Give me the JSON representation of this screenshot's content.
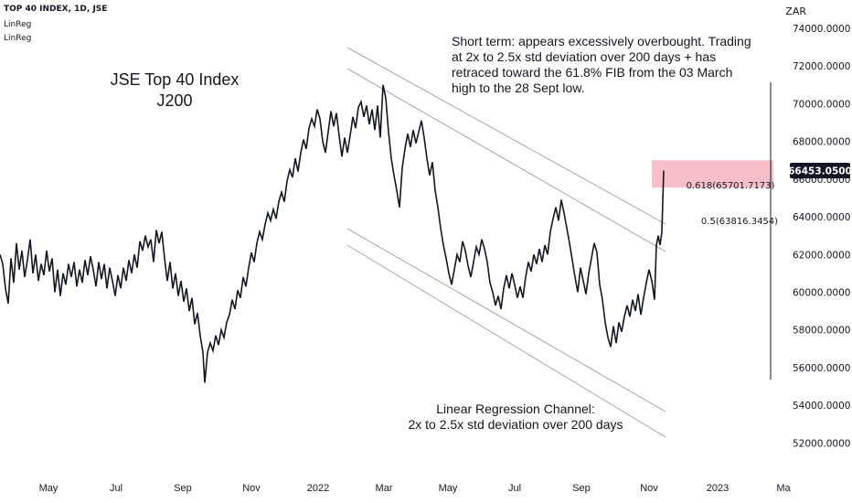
{
  "header": {
    "symbol_line": "TOP 40 INDEX, 1D, JSE",
    "indicator_1": "LinReg",
    "indicator_2": "LinReg"
  },
  "currency": "ZAR",
  "colors": {
    "price_line": "#131722",
    "channel_line": "#9e9e9e",
    "fib_box": "#f6aab7",
    "price_tag_bg": "#131722",
    "price_tag_text": "#ffffff"
  },
  "chart_data": {
    "type": "line",
    "title": "JSE Top 40 Index",
    "subtitle": "J200",
    "annotation_top": "Short term: appears excessively overbought. Trading at 2x to 2.5x std deviation over 200 days + has retraced toward the 61.8% FIB from the 03 March high to the 28 Sept low.",
    "annotation_top_lines": [
      "Short term: appears excessively overbought. Trading",
      "at 2x to 2.5x std deviation over 200 days + has",
      "retraced toward the 61.8% FIB from the 03 March",
      "high to the 28 Sept low."
    ],
    "annotation_bottom_lines": [
      "Linear Regression Channel:",
      "2x to 2.5x std deviation over 200 days"
    ],
    "x_tick_labels": [
      "May",
      "Jul",
      "Sep",
      "Nov",
      "2022",
      "Mar",
      "May",
      "Jul",
      "Sep",
      "Nov",
      "2023",
      "Ma"
    ],
    "y_tick_labels": [
      "74000.0000",
      "72000.0000",
      "70000.0000",
      "68000.0000",
      "66000.0000",
      "64000.0000",
      "62000.0000",
      "60000.0000",
      "58000.0000",
      "56000.0000",
      "54000.0000",
      "52000.0000"
    ],
    "ylim": [
      51000,
      75500
    ],
    "last_price_label": "66453.0500",
    "last_price": 66453.05,
    "fib_levels": [
      {
        "label": "0.618(65701.7173)",
        "value": 65701.7173
      },
      {
        "label": "0.5(63816.3454)",
        "value": 63816.3454
      }
    ],
    "fib_box_range": [
      65550,
      67000
    ],
    "series": [
      {
        "values": [
          [
            0,
            62000
          ],
          [
            3,
            61500
          ],
          [
            6,
            60200
          ],
          [
            9,
            59400
          ],
          [
            12,
            61800
          ],
          [
            15,
            60500
          ],
          [
            18,
            62600
          ],
          [
            21,
            61200
          ],
          [
            24,
            62200
          ],
          [
            27,
            60800
          ],
          [
            30,
            61700
          ],
          [
            33,
            62800
          ],
          [
            36,
            61000
          ],
          [
            39,
            62000
          ],
          [
            42,
            60600
          ],
          [
            45,
            61500
          ],
          [
            48,
            60900
          ],
          [
            51,
            62200
          ],
          [
            54,
            61100
          ],
          [
            57,
            61800
          ],
          [
            60,
            60000
          ],
          [
            63,
            61200
          ],
          [
            66,
            59800
          ],
          [
            69,
            61000
          ],
          [
            72,
            60400
          ],
          [
            75,
            61500
          ],
          [
            78,
            60800
          ],
          [
            81,
            61600
          ],
          [
            84,
            60300
          ],
          [
            87,
            61200
          ],
          [
            90,
            60500
          ],
          [
            93,
            61700
          ],
          [
            96,
            60900
          ],
          [
            99,
            61900
          ],
          [
            102,
            61200
          ],
          [
            105,
            60300
          ],
          [
            108,
            61600
          ],
          [
            111,
            60700
          ],
          [
            114,
            61500
          ],
          [
            117,
            60200
          ],
          [
            120,
            61300
          ],
          [
            123,
            60600
          ],
          [
            126,
            59800
          ],
          [
            129,
            60900
          ],
          [
            132,
            60200
          ],
          [
            135,
            61300
          ],
          [
            138,
            60600
          ],
          [
            141,
            61700
          ],
          [
            144,
            61000
          ],
          [
            147,
            62000
          ],
          [
            150,
            61300
          ],
          [
            153,
            62700
          ],
          [
            156,
            62200
          ],
          [
            159,
            63000
          ],
          [
            162,
            62400
          ],
          [
            165,
            62800
          ],
          [
            168,
            61600
          ],
          [
            171,
            63300
          ],
          [
            174,
            62600
          ],
          [
            177,
            63200
          ],
          [
            180,
            61800
          ],
          [
            183,
            60600
          ],
          [
            186,
            61600
          ],
          [
            189,
            60200
          ],
          [
            192,
            61000
          ],
          [
            195,
            59800
          ],
          [
            198,
            60600
          ],
          [
            201,
            59500
          ],
          [
            204,
            60200
          ],
          [
            207,
            59000
          ],
          [
            210,
            59700
          ],
          [
            213,
            58300
          ],
          [
            216,
            58900
          ],
          [
            219,
            57700
          ],
          [
            222,
            56800
          ],
          [
            224,
            55200
          ],
          [
            227,
            56800
          ],
          [
            230,
            57300
          ],
          [
            233,
            56900
          ],
          [
            236,
            57700
          ],
          [
            239,
            57200
          ],
          [
            242,
            58000
          ],
          [
            245,
            57600
          ],
          [
            248,
            58400
          ],
          [
            251,
            58800
          ],
          [
            254,
            59600
          ],
          [
            257,
            59100
          ],
          [
            260,
            60100
          ],
          [
            263,
            59700
          ],
          [
            266,
            60800
          ],
          [
            269,
            60300
          ],
          [
            272,
            61300
          ],
          [
            275,
            62100
          ],
          [
            278,
            61600
          ],
          [
            281,
            62600
          ],
          [
            284,
            63200
          ],
          [
            287,
            62800
          ],
          [
            290,
            63600
          ],
          [
            293,
            64200
          ],
          [
            296,
            63800
          ],
          [
            299,
            64400
          ],
          [
            302,
            63900
          ],
          [
            305,
            64800
          ],
          [
            308,
            65300
          ],
          [
            311,
            64800
          ],
          [
            314,
            65900
          ],
          [
            317,
            66500
          ],
          [
            320,
            66100
          ],
          [
            323,
            67100
          ],
          [
            326,
            66400
          ],
          [
            329,
            67400
          ],
          [
            332,
            68100
          ],
          [
            335,
            67600
          ],
          [
            338,
            68700
          ],
          [
            341,
            69200
          ],
          [
            344,
            68800
          ],
          [
            347,
            69700
          ],
          [
            350,
            69200
          ],
          [
            353,
            68000
          ],
          [
            356,
            67400
          ],
          [
            359,
            68500
          ],
          [
            362,
            69600
          ],
          [
            365,
            68800
          ],
          [
            368,
            69500
          ],
          [
            371,
            68300
          ],
          [
            374,
            67200
          ],
          [
            377,
            68200
          ],
          [
            380,
            67400
          ],
          [
            383,
            68300
          ],
          [
            386,
            69300
          ],
          [
            389,
            68700
          ],
          [
            392,
            69800
          ],
          [
            395,
            70100
          ],
          [
            398,
            69300
          ],
          [
            401,
            69900
          ],
          [
            404,
            68900
          ],
          [
            407,
            69700
          ],
          [
            410,
            68600
          ],
          [
            413,
            69900
          ],
          [
            416,
            68200
          ],
          [
            419,
            71000
          ],
          [
            422,
            70300
          ],
          [
            425,
            68500
          ],
          [
            428,
            67100
          ],
          [
            431,
            66200
          ],
          [
            434,
            65400
          ],
          [
            437,
            64500
          ],
          [
            440,
            66600
          ],
          [
            443,
            67600
          ],
          [
            446,
            68400
          ],
          [
            449,
            67700
          ],
          [
            452,
            68600
          ],
          [
            455,
            67900
          ],
          [
            458,
            68500
          ],
          [
            461,
            69100
          ],
          [
            464,
            68200
          ],
          [
            467,
            67100
          ],
          [
            470,
            66200
          ],
          [
            473,
            66900
          ],
          [
            476,
            65400
          ],
          [
            479,
            64500
          ],
          [
            482,
            63400
          ],
          [
            485,
            62500
          ],
          [
            488,
            61800
          ],
          [
            491,
            61000
          ],
          [
            494,
            60400
          ],
          [
            497,
            61200
          ],
          [
            500,
            62000
          ],
          [
            503,
            61600
          ],
          [
            506,
            62700
          ],
          [
            509,
            62200
          ],
          [
            512,
            61400
          ],
          [
            515,
            60800
          ],
          [
            518,
            61600
          ],
          [
            521,
            62400
          ],
          [
            524,
            62000
          ],
          [
            527,
            62800
          ],
          [
            530,
            62300
          ],
          [
            533,
            61600
          ],
          [
            536,
            60500
          ],
          [
            539,
            60000
          ],
          [
            542,
            59300
          ],
          [
            545,
            59800
          ],
          [
            548,
            59100
          ],
          [
            551,
            60200
          ],
          [
            554,
            60900
          ],
          [
            557,
            60200
          ],
          [
            560,
            61000
          ],
          [
            563,
            60400
          ],
          [
            566,
            59700
          ],
          [
            569,
            60300
          ],
          [
            572,
            59700
          ],
          [
            575,
            60800
          ],
          [
            578,
            61600
          ],
          [
            581,
            61100
          ],
          [
            584,
            62000
          ],
          [
            587,
            61500
          ],
          [
            590,
            62300
          ],
          [
            593,
            61600
          ],
          [
            596,
            62500
          ],
          [
            599,
            62000
          ],
          [
            602,
            63200
          ],
          [
            605,
            63900
          ],
          [
            608,
            64500
          ],
          [
            611,
            63800
          ],
          [
            614,
            64900
          ],
          [
            617,
            64200
          ],
          [
            620,
            63400
          ],
          [
            623,
            62600
          ],
          [
            626,
            61700
          ],
          [
            629,
            60800
          ],
          [
            632,
            60000
          ],
          [
            635,
            61300
          ],
          [
            638,
            60600
          ],
          [
            641,
            59900
          ],
          [
            644,
            61000
          ],
          [
            647,
            61800
          ],
          [
            650,
            62600
          ],
          [
            653,
            62100
          ],
          [
            656,
            60400
          ],
          [
            659,
            59600
          ],
          [
            662,
            58400
          ],
          [
            665,
            57600
          ],
          [
            668,
            57100
          ],
          [
            671,
            58200
          ],
          [
            674,
            57300
          ],
          [
            677,
            58400
          ],
          [
            680,
            57900
          ],
          [
            683,
            58700
          ],
          [
            686,
            59300
          ],
          [
            689,
            58700
          ],
          [
            692,
            59600
          ],
          [
            695,
            59000
          ],
          [
            698,
            59900
          ],
          [
            701,
            58800
          ],
          [
            704,
            59700
          ],
          [
            707,
            60500
          ],
          [
            710,
            61200
          ],
          [
            713,
            60600
          ],
          [
            716,
            59600
          ],
          [
            718,
            62500
          ],
          [
            720,
            63000
          ],
          [
            722,
            62500
          ],
          [
            724,
            63200
          ],
          [
            726,
            66453
          ]
        ]
      }
    ]
  }
}
